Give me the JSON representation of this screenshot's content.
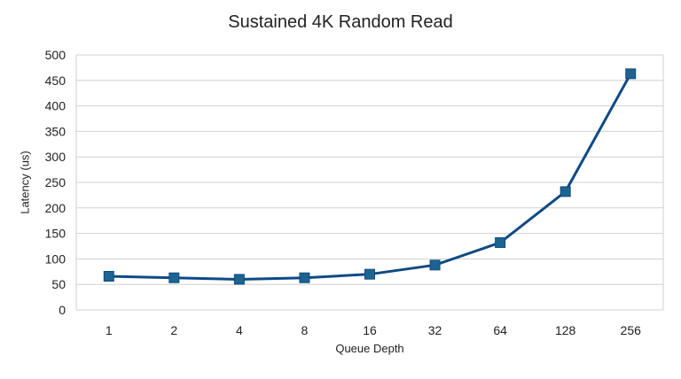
{
  "chart_data": {
    "type": "line",
    "title": "Sustained 4K Random Read",
    "xlabel": "Queue Depth",
    "ylabel": "Latency (us)",
    "categories": [
      "1",
      "2",
      "4",
      "8",
      "16",
      "32",
      "64",
      "128",
      "256"
    ],
    "series": [
      {
        "values": [
          66,
          63,
          60,
          63,
          70,
          88,
          132,
          232,
          463
        ]
      }
    ],
    "ylim": [
      0,
      500
    ],
    "yticks": [
      "0",
      "50",
      "100",
      "150",
      "200",
      "250",
      "300",
      "350",
      "400",
      "450",
      "500"
    ],
    "grid": true,
    "legend": "none",
    "line_color": "#0f4a84",
    "marker_color": "#1d6490",
    "marker": "square"
  }
}
